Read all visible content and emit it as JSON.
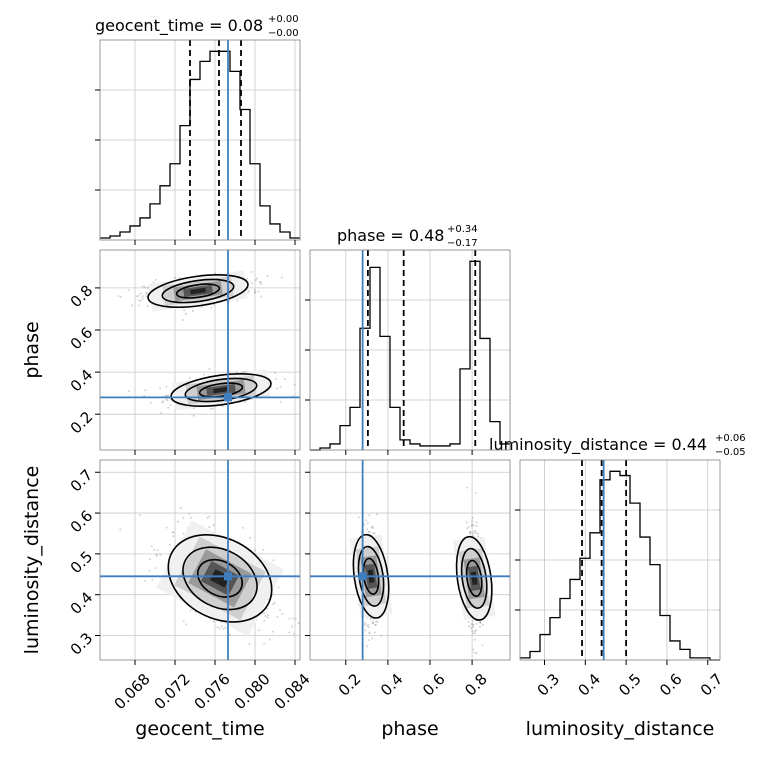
{
  "colors": {
    "truth": "#3f7fbf",
    "hist": "#000000",
    "scatter": "#808080"
  },
  "titles": {
    "geocent_time": {
      "main": "geocent_time = 0.08",
      "plus": "+0.00",
      "minus": "−0.00"
    },
    "phase": {
      "main": "phase = 0.48",
      "plus": "+0.34",
      "minus": "−0.17"
    },
    "luminosity_distance": {
      "main": "luminosity_distance = 0.44",
      "plus": "+0.06",
      "minus": "−0.05"
    }
  },
  "axis_labels": {
    "geocent_time": "geocent_time",
    "phase": "phase",
    "luminosity_distance": "luminosity_distance"
  },
  "chart_data": {
    "type": "corner",
    "parameters": [
      "geocent_time",
      "phase",
      "luminosity_distance"
    ],
    "ranges": {
      "geocent_time": [
        0.0645,
        0.0845
      ],
      "phase": [
        0.03,
        0.98
      ],
      "luminosity_distance": [
        0.24,
        0.73
      ]
    },
    "ticks": {
      "geocent_time": [
        "0.068",
        "0.072",
        "0.076",
        "0.080",
        "0.084"
      ],
      "phase": [
        "0.2",
        "0.4",
        "0.6",
        "0.8"
      ],
      "luminosity_distance": [
        "0.3",
        "0.4",
        "0.5",
        "0.6",
        "0.7"
      ]
    },
    "truth": {
      "geocent_time": 0.0773,
      "phase": 0.28,
      "luminosity_distance": 0.445
    },
    "quantiles": {
      "geocent_time": [
        0.0735,
        0.0764,
        0.0786
      ],
      "phase": [
        0.305,
        0.475,
        0.815
      ],
      "luminosity_distance": [
        0.392,
        0.44,
        0.5
      ]
    },
    "histograms": {
      "geocent_time": {
        "bin_edges": [
          0.0645,
          0.0655,
          0.0665,
          0.0675,
          0.0685,
          0.0695,
          0.0705,
          0.0715,
          0.0725,
          0.0735,
          0.0745,
          0.0755,
          0.0765,
          0.0775,
          0.0785,
          0.0795,
          0.0805,
          0.0815,
          0.0825,
          0.0835,
          0.0845
        ],
        "counts": [
          1,
          2,
          4,
          7,
          11,
          18,
          27,
          38,
          57,
          80,
          89,
          94,
          94,
          84,
          65,
          38,
          17,
          8,
          4,
          1
        ]
      },
      "phase": {
        "bin_edges": [
          0.03,
          0.0775,
          0.125,
          0.1725,
          0.22,
          0.2675,
          0.315,
          0.3625,
          0.41,
          0.4575,
          0.505,
          0.5525,
          0.6,
          0.6475,
          0.695,
          0.7425,
          0.79,
          0.8375,
          0.885,
          0.9325,
          0.98
        ],
        "counts": [
          0,
          1,
          3,
          12,
          21,
          60,
          90,
          56,
          21,
          5,
          3,
          2,
          2,
          2,
          3,
          40,
          93,
          55,
          14,
          3
        ]
      },
      "luminosity_distance": {
        "bin_edges": [
          0.24,
          0.2645,
          0.289,
          0.3135,
          0.338,
          0.3625,
          0.387,
          0.4115,
          0.436,
          0.4605,
          0.485,
          0.5095,
          0.534,
          0.5585,
          0.583,
          0.6075,
          0.632,
          0.6565,
          0.681,
          0.7055,
          0.73
        ],
        "counts": [
          1,
          4,
          12,
          20,
          29,
          38,
          48,
          60,
          85,
          89,
          87,
          74,
          58,
          45,
          21,
          9,
          5,
          1,
          1,
          0
        ]
      }
    },
    "joint_modes": [
      {
        "x": "geocent_time",
        "y": "phase",
        "centers": [
          [
            0.0766,
            0.315
          ],
          [
            0.0743,
            0.785
          ]
        ]
      },
      {
        "x": "geocent_time",
        "y": "luminosity_distance",
        "centers": [
          [
            0.0765,
            0.44
          ]
        ]
      },
      {
        "x": "phase",
        "y": "luminosity_distance",
        "centers": [
          [
            0.32,
            0.445
          ],
          [
            0.81,
            0.44
          ]
        ]
      }
    ]
  }
}
